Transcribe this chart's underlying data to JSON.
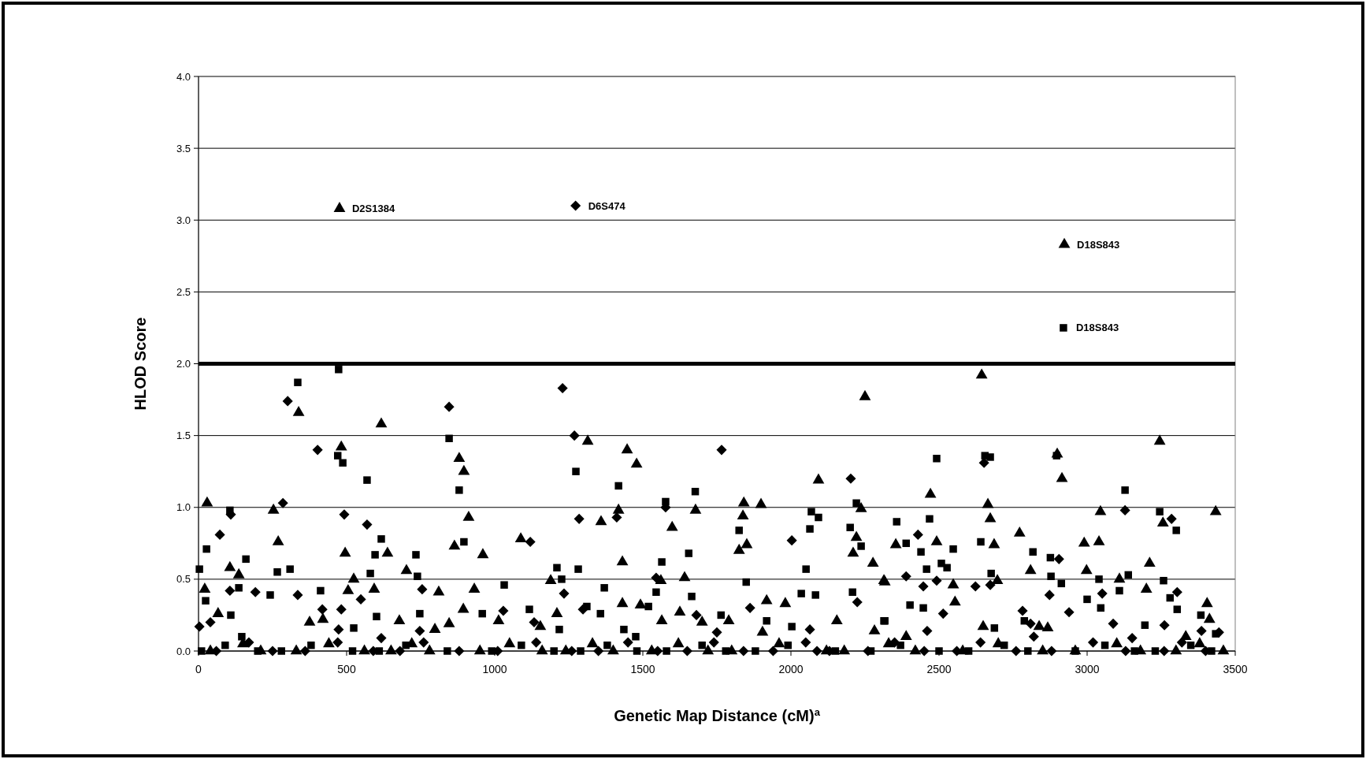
{
  "chart_data": {
    "type": "scatter",
    "xlabel": "Genetic Map Distance (cM)$^{a}$",
    "ylabel": "HLOD Score",
    "xlim": [
      0,
      3500
    ],
    "xticks": [
      0,
      500,
      1000,
      1500,
      2000,
      2500,
      3000,
      3500
    ],
    "ylim": [
      0,
      4
    ],
    "yticks": [
      {
        "value": 0,
        "label": "0.0"
      },
      {
        "value": 0.5,
        "label": "0.5"
      },
      {
        "value": 1,
        "label": "1.0"
      },
      {
        "value": 1.5,
        "label": "1.5"
      },
      {
        "value": 2,
        "label": "2.0"
      },
      {
        "value": 2.5,
        "label": "2.5"
      },
      {
        "value": 3,
        "label": "3.0"
      },
      {
        "value": 3.5,
        "label": "3.5"
      },
      {
        "value": 4,
        "label": "4.0"
      }
    ],
    "grid": "y",
    "ref_lines": [
      {
        "axis": "y",
        "value": 2,
        "color": "#000000"
      }
    ],
    "annotations": [
      {
        "text": "D2S1384",
        "x": 476,
        "y": 3.08
      },
      {
        "text": "D6S474",
        "x": 1273,
        "y": 3.1
      },
      {
        "text": "D18S843",
        "x": 2923,
        "y": 2.83
      },
      {
        "text": "D18S843",
        "x": 2920,
        "y": 2.25
      }
    ],
    "series": [
      {
        "color": "#000000",
        "marker": "triangle",
        "x": [
          476,
          2923,
          29,
          338,
          617,
          482,
          880,
          896,
          912,
          253,
          269,
          495,
          638,
          864,
          960,
          1088,
          106,
          136,
          702,
          524,
          21,
          811,
          931,
          505,
          593,
          66,
          375,
          420,
          798,
          894,
          1013,
          846,
          678,
          2250,
          1314,
          1447,
          1479,
          2093,
          1841,
          1899,
          1678,
          2237,
          1418,
          1838,
          1359,
          1599,
          1851,
          1825,
          2221,
          2210,
          2277,
          1431,
          2314,
          1189,
          1561,
          1641,
          1918,
          1981,
          1210,
          1431,
          1492,
          1625,
          1700,
          1790,
          2155,
          1564,
          1904,
          1154,
          2282,
          2644,
          3245,
          2915,
          2899,
          2471,
          2665,
          2673,
          3045,
          3434,
          3256,
          2772,
          2354,
          2492,
          2686,
          2990,
          3040,
          3211,
          2998,
          2809,
          2317,
          2697,
          2548,
          3109,
          3200,
          2554,
          3405,
          3413,
          2649,
          2838,
          2867,
          3333,
          2389,
          40,
          150,
          210,
          330,
          440,
          560,
          650,
          720,
          780,
          950,
          1050,
          1160,
          1240,
          1330,
          1400,
          1530,
          1620,
          1720,
          1800,
          1960,
          2120,
          2180,
          2330,
          2420,
          2580,
          2700,
          2850,
          2960,
          3100,
          3180,
          3300,
          3380,
          3460
        ],
        "values": [
          3.08,
          2.83,
          1.03,
          1.66,
          1.58,
          1.42,
          1.34,
          1.25,
          0.93,
          0.98,
          0.76,
          0.68,
          0.68,
          0.73,
          0.67,
          0.78,
          0.58,
          0.53,
          0.56,
          0.5,
          0.43,
          0.41,
          0.43,
          0.42,
          0.43,
          0.26,
          0.2,
          0.22,
          0.15,
          0.29,
          0.21,
          0.19,
          0.21,
          1.77,
          1.46,
          1.4,
          1.3,
          1.19,
          1.03,
          1.02,
          0.98,
          0.99,
          0.98,
          0.94,
          0.9,
          0.86,
          0.74,
          0.7,
          0.79,
          0.68,
          0.61,
          0.62,
          0.49,
          0.49,
          0.49,
          0.51,
          0.35,
          0.33,
          0.26,
          0.33,
          0.32,
          0.27,
          0.2,
          0.21,
          0.21,
          0.21,
          0.13,
          0.17,
          0.14,
          1.92,
          1.46,
          1.2,
          1.37,
          1.09,
          1.02,
          0.92,
          0.97,
          0.97,
          0.89,
          0.82,
          0.74,
          0.76,
          0.74,
          0.75,
          0.76,
          0.61,
          0.56,
          0.56,
          0.48,
          0.49,
          0.46,
          0.5,
          0.43,
          0.34,
          0.33,
          0.22,
          0.17,
          0.17,
          0.16,
          0.1,
          0.1,
          0,
          0.05,
          0,
          0,
          0.05,
          0,
          0,
          0.05,
          0,
          0,
          0.05,
          0,
          0,
          0.05,
          0,
          0,
          0.05,
          0,
          0,
          0.05,
          0,
          0,
          0.05,
          0,
          0,
          0.05,
          0,
          0,
          0.05,
          0,
          0,
          0.05,
          0
        ]
      },
      {
        "color": "#000000",
        "marker": "square",
        "x": [
          2920,
          473,
          335,
          846,
          487,
          470,
          569,
          880,
          106,
          27,
          3,
          617,
          596,
          896,
          734,
          160,
          266,
          309,
          580,
          739,
          1032,
          1117,
          136,
          24,
          109,
          412,
          242,
          524,
          747,
          601,
          958,
          146,
          1274,
          1418,
          1677,
          1577,
          2221,
          2069,
          2093,
          2064,
          1825,
          2200,
          2237,
          1655,
          1564,
          1210,
          1282,
          1226,
          1849,
          2051,
          1370,
          1665,
          1545,
          2208,
          2035,
          2083,
          1519,
          1311,
          1764,
          2314,
          1218,
          1436,
          1476,
          1918,
          2003,
          1357,
          2492,
          2655,
          2673,
          2897,
          3128,
          3245,
          3301,
          2357,
          2468,
          2389,
          2439,
          2548,
          2641,
          2817,
          2876,
          2508,
          2527,
          2458,
          2676,
          2878,
          2913,
          3040,
          3139,
          3258,
          3109,
          2317,
          2402,
          2447,
          2687,
          3195,
          3384,
          3434,
          3000,
          3046,
          3280,
          3304,
          2788,
          10,
          90,
          200,
          280,
          380,
          520,
          610,
          700,
          840,
          990,
          1090,
          1200,
          1290,
          1380,
          1480,
          1580,
          1700,
          1780,
          1880,
          1990,
          2150,
          2270,
          2370,
          2500,
          2600,
          2720,
          2800,
          2960,
          3060,
          3160,
          3230,
          3350,
          3420
        ],
        "values": [
          2.25,
          1.96,
          1.87,
          1.48,
          1.31,
          1.36,
          1.19,
          1.12,
          0.98,
          0.71,
          0.57,
          0.78,
          0.67,
          0.76,
          0.67,
          0.64,
          0.55,
          0.57,
          0.54,
          0.52,
          0.46,
          0.29,
          0.44,
          0.35,
          0.25,
          0.42,
          0.39,
          0.16,
          0.26,
          0.24,
          0.26,
          0.1,
          1.25,
          1.15,
          1.11,
          1.04,
          1.03,
          0.97,
          0.93,
          0.85,
          0.84,
          0.86,
          0.73,
          0.68,
          0.62,
          0.58,
          0.57,
          0.5,
          0.48,
          0.57,
          0.44,
          0.38,
          0.41,
          0.41,
          0.4,
          0.39,
          0.31,
          0.31,
          0.25,
          0.21,
          0.15,
          0.15,
          0.1,
          0.21,
          0.17,
          0.26,
          1.34,
          1.36,
          1.35,
          1.36,
          1.12,
          0.97,
          0.84,
          0.9,
          0.92,
          0.75,
          0.69,
          0.71,
          0.76,
          0.69,
          0.65,
          0.61,
          0.58,
          0.57,
          0.54,
          0.52,
          0.47,
          0.5,
          0.53,
          0.49,
          0.42,
          0.21,
          0.32,
          0.3,
          0.16,
          0.18,
          0.25,
          0.12,
          0.36,
          0.3,
          0.37,
          0.29,
          0.21,
          0,
          0.04,
          0,
          0,
          0.04,
          0,
          0,
          0.04,
          0,
          0,
          0.04,
          0,
          0,
          0.04,
          0,
          0,
          0.04,
          0,
          0,
          0.04,
          0,
          0,
          0.04,
          0,
          0,
          0.04,
          0,
          0,
          0.04,
          0,
          0,
          0.04,
          0
        ]
      },
      {
        "color": "#000000",
        "marker": "diamond",
        "x": [
          1273,
          301,
          846,
          402,
          492,
          285,
          109,
          72,
          569,
          1120,
          335,
          192,
          106,
          548,
          755,
          418,
          482,
          1029,
          3,
          473,
          747,
          617,
          1133,
          40,
          1229,
          1269,
          1766,
          1285,
          1412,
          2202,
          2003,
          1577,
          1234,
          1545,
          2224,
          1862,
          1298,
          1750,
          2064,
          1681,
          2088,
          2652,
          3128,
          3285,
          2429,
          2389,
          2492,
          2447,
          2623,
          2673,
          2905,
          2873,
          3051,
          3304,
          2809,
          2820,
          2782,
          3386,
          3445,
          3261,
          2939,
          2514,
          2460,
          3088,
          3152,
          60,
          170,
          250,
          360,
          470,
          590,
          680,
          760,
          880,
          1010,
          1140,
          1260,
          1350,
          1450,
          1550,
          1650,
          1740,
          1840,
          1940,
          2050,
          2130,
          2260,
          2350,
          2450,
          2560,
          2640,
          2760,
          2880,
          3020,
          3130,
          3260,
          3320,
          3400
        ],
        "values": [
          3.1,
          1.74,
          1.7,
          1.4,
          0.95,
          1.03,
          0.95,
          0.81,
          0.88,
          0.76,
          0.39,
          0.41,
          0.42,
          0.36,
          0.43,
          0.29,
          0.29,
          0.28,
          0.17,
          0.15,
          0.14,
          0.09,
          0.2,
          0.2,
          1.83,
          1.5,
          1.4,
          0.92,
          0.93,
          1.2,
          0.77,
          1.0,
          0.4,
          0.51,
          0.34,
          0.3,
          0.29,
          0.13,
          0.15,
          0.25,
          0,
          1.31,
          0.98,
          0.92,
          0.81,
          0.52,
          0.49,
          0.45,
          0.45,
          0.46,
          0.64,
          0.39,
          0.4,
          0.41,
          0.19,
          0.1,
          0.28,
          0.14,
          0.13,
          0.18,
          0.27,
          0.26,
          0.14,
          0.19,
          0.09,
          0,
          0.06,
          0,
          0,
          0.06,
          0,
          0,
          0.06,
          0,
          0,
          0.06,
          0,
          0,
          0.06,
          0,
          0,
          0.06,
          0,
          0,
          0.06,
          0,
          0,
          0.06,
          0,
          0,
          0.06,
          0,
          0,
          0.06,
          0,
          0,
          0.06,
          0
        ]
      }
    ]
  }
}
